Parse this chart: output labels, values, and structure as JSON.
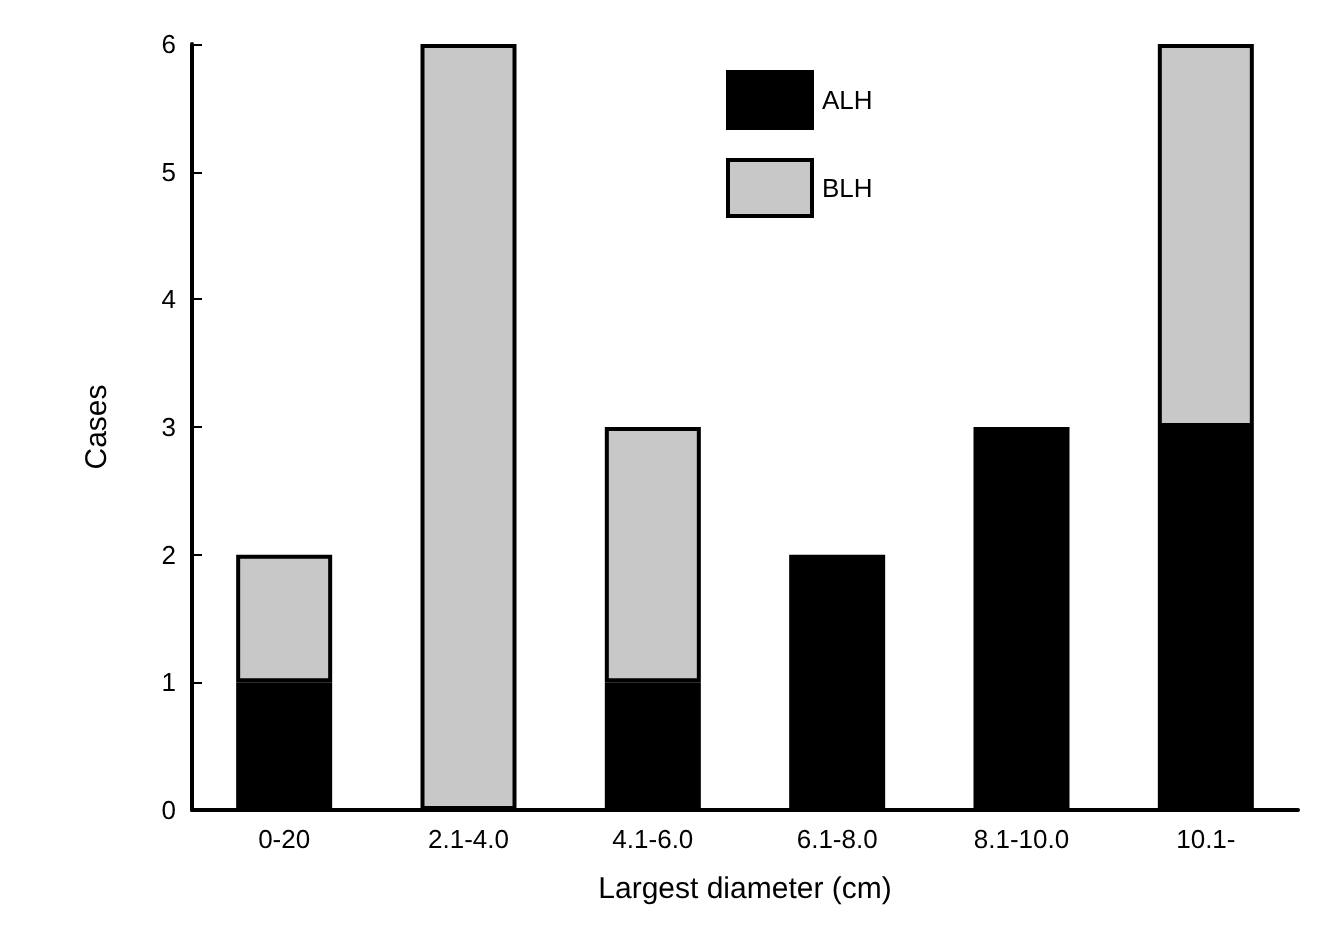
{
  "chart_data": {
    "type": "bar",
    "stacked": true,
    "xlabel": "Largest diameter (cm)",
    "ylabel": "Cases",
    "categories": [
      "0-20",
      "2.1-4.0",
      "4.1-6.0",
      "6.1-8.0",
      "8.1-10.0",
      "10.1-"
    ],
    "series": [
      {
        "name": "ALH",
        "color": "#000000",
        "values": [
          1,
          0,
          1,
          2,
          3,
          3
        ]
      },
      {
        "name": "BLH",
        "color": "#c8c8c8",
        "values": [
          1,
          6,
          2,
          0,
          0,
          3
        ]
      }
    ],
    "ylim": [
      0,
      6
    ],
    "yticks": [
      0,
      1,
      2,
      3,
      4,
      5,
      6
    ],
    "grid": false,
    "legend": "top right"
  }
}
